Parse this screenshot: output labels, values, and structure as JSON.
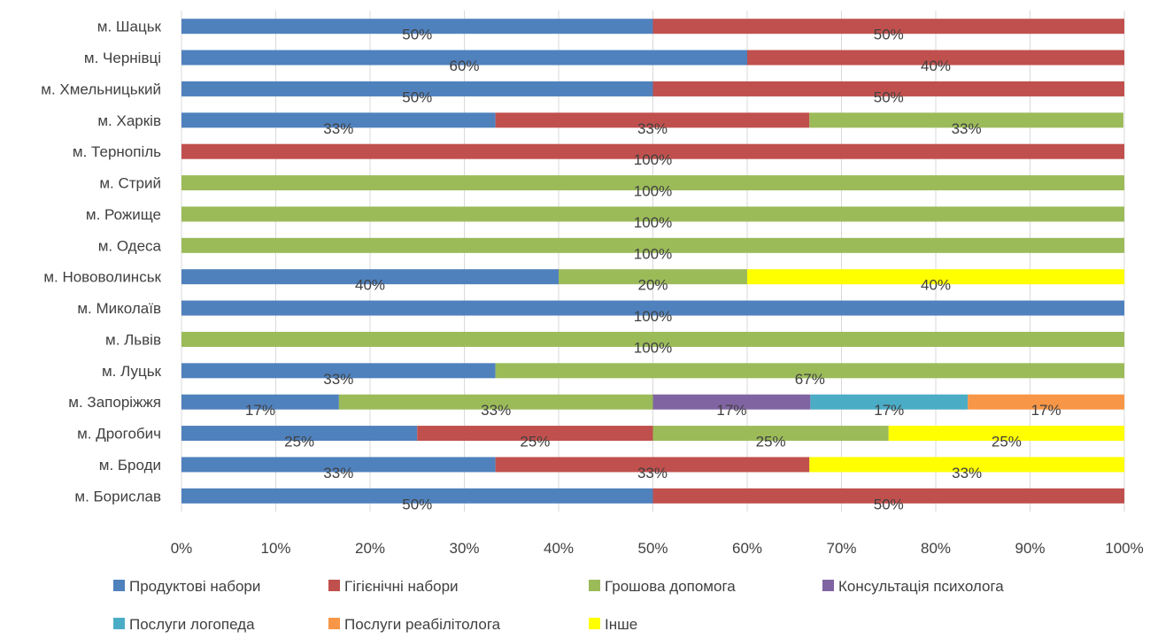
{
  "chart_data": {
    "type": "bar",
    "orientation": "horizontal",
    "stacked": "percent",
    "grid": true,
    "legend_position": "bottom",
    "xlim": [
      0,
      100
    ],
    "x_ticks": [
      "0%",
      "10%",
      "20%",
      "30%",
      "40%",
      "50%",
      "60%",
      "70%",
      "80%",
      "90%",
      "100%"
    ],
    "categories": [
      "м. Шацьк",
      "м. Чернівці",
      "м. Хмельницький",
      "м. Харків",
      "м. Тернопіль",
      "м. Стрий",
      "м. Рожище",
      "м. Одеса",
      "м. Нововолинськ",
      "м. Миколаїв",
      "м. Львів",
      "м. Луцьк",
      "м. Запоріжжя",
      "м. Дрогобич",
      "м. Броди",
      "м. Борислав"
    ],
    "series": [
      {
        "name": "Продуктові набори",
        "color": "#4F81BD",
        "values": [
          50,
          60,
          50,
          33.3,
          0,
          0,
          0,
          0,
          40,
          100,
          0,
          33.3,
          16.7,
          25,
          33.3,
          50
        ],
        "labels": [
          "50%",
          "60%",
          "50%",
          "33%",
          "",
          "",
          "",
          "",
          "40%",
          "100%",
          "",
          "33%",
          "17%",
          "25%",
          "33%",
          "50%"
        ]
      },
      {
        "name": "Гігієнічні набори",
        "color": "#C0504D",
        "values": [
          50,
          40,
          50,
          33.3,
          100,
          0,
          0,
          0,
          0,
          0,
          0,
          0,
          0,
          25,
          33.3,
          50
        ],
        "labels": [
          "50%",
          "40%",
          "50%",
          "33%",
          "100%",
          "",
          "",
          "",
          "",
          "",
          "",
          "",
          "",
          "25%",
          "33%",
          "50%"
        ]
      },
      {
        "name": "Грошова допомога",
        "color": "#9BBB59",
        "values": [
          0,
          0,
          0,
          33.3,
          0,
          100,
          100,
          100,
          20,
          0,
          100,
          66.7,
          33.3,
          25,
          0,
          0
        ],
        "labels": [
          "",
          "",
          "",
          "33%",
          "",
          "100%",
          "100%",
          "100%",
          "20%",
          "",
          "100%",
          "67%",
          "33%",
          "25%",
          "",
          ""
        ]
      },
      {
        "name": "Консультація психолога",
        "color": "#8064A2",
        "values": [
          0,
          0,
          0,
          0,
          0,
          0,
          0,
          0,
          0,
          0,
          0,
          0,
          16.7,
          0,
          0,
          0
        ],
        "labels": [
          "",
          "",
          "",
          "",
          "",
          "",
          "",
          "",
          "",
          "",
          "",
          "",
          "17%",
          "",
          "",
          ""
        ]
      },
      {
        "name": "Послуги логопеда",
        "color": "#4BACC6",
        "values": [
          0,
          0,
          0,
          0,
          0,
          0,
          0,
          0,
          0,
          0,
          0,
          0,
          16.7,
          0,
          0,
          0
        ],
        "labels": [
          "",
          "",
          "",
          "",
          "",
          "",
          "",
          "",
          "",
          "",
          "",
          "",
          "17%",
          "",
          "",
          ""
        ]
      },
      {
        "name": "Послуги реабілітолога",
        "color": "#F79646",
        "values": [
          0,
          0,
          0,
          0,
          0,
          0,
          0,
          0,
          0,
          0,
          0,
          0,
          16.6,
          0,
          0,
          0
        ],
        "labels": [
          "",
          "",
          "",
          "",
          "",
          "",
          "",
          "",
          "",
          "",
          "",
          "",
          "17%",
          "",
          "",
          ""
        ]
      },
      {
        "name": "Інше",
        "color": "#FFFF00",
        "values": [
          0,
          0,
          0,
          0,
          0,
          0,
          0,
          0,
          40,
          0,
          0,
          0,
          0,
          25,
          33.4,
          0
        ],
        "labels": [
          "",
          "",
          "",
          "",
          "",
          "",
          "",
          "",
          "40%",
          "",
          "",
          "",
          "",
          "25%",
          "33%",
          ""
        ]
      }
    ]
  }
}
